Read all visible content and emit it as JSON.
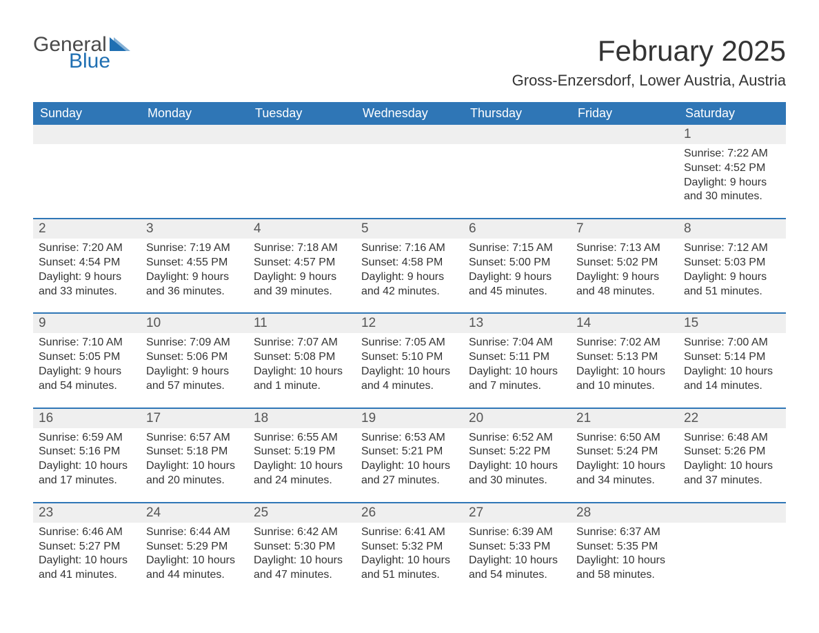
{
  "logo": {
    "part1": "General",
    "part2": "Blue",
    "accent_color": "#1f6fb2"
  },
  "title": "February 2025",
  "location": "Gross-Enzersdorf, Lower Austria, Austria",
  "colors": {
    "header_bg": "#2f76b6",
    "daynum_bg": "#efefef",
    "rule": "#2f76b6",
    "text": "#333333",
    "page_bg": "#ffffff"
  },
  "day_headers": [
    "Sunday",
    "Monday",
    "Tuesday",
    "Wednesday",
    "Thursday",
    "Friday",
    "Saturday"
  ],
  "weeks": [
    {
      "nums": [
        "",
        "",
        "",
        "",
        "",
        "",
        "1"
      ],
      "cells": [
        null,
        null,
        null,
        null,
        null,
        null,
        {
          "sunrise": "Sunrise: 7:22 AM",
          "sunset": "Sunset: 4:52 PM",
          "d1": "Daylight: 9 hours",
          "d2": "and 30 minutes."
        }
      ]
    },
    {
      "nums": [
        "2",
        "3",
        "4",
        "5",
        "6",
        "7",
        "8"
      ],
      "cells": [
        {
          "sunrise": "Sunrise: 7:20 AM",
          "sunset": "Sunset: 4:54 PM",
          "d1": "Daylight: 9 hours",
          "d2": "and 33 minutes."
        },
        {
          "sunrise": "Sunrise: 7:19 AM",
          "sunset": "Sunset: 4:55 PM",
          "d1": "Daylight: 9 hours",
          "d2": "and 36 minutes."
        },
        {
          "sunrise": "Sunrise: 7:18 AM",
          "sunset": "Sunset: 4:57 PM",
          "d1": "Daylight: 9 hours",
          "d2": "and 39 minutes."
        },
        {
          "sunrise": "Sunrise: 7:16 AM",
          "sunset": "Sunset: 4:58 PM",
          "d1": "Daylight: 9 hours",
          "d2": "and 42 minutes."
        },
        {
          "sunrise": "Sunrise: 7:15 AM",
          "sunset": "Sunset: 5:00 PM",
          "d1": "Daylight: 9 hours",
          "d2": "and 45 minutes."
        },
        {
          "sunrise": "Sunrise: 7:13 AM",
          "sunset": "Sunset: 5:02 PM",
          "d1": "Daylight: 9 hours",
          "d2": "and 48 minutes."
        },
        {
          "sunrise": "Sunrise: 7:12 AM",
          "sunset": "Sunset: 5:03 PM",
          "d1": "Daylight: 9 hours",
          "d2": "and 51 minutes."
        }
      ]
    },
    {
      "nums": [
        "9",
        "10",
        "11",
        "12",
        "13",
        "14",
        "15"
      ],
      "cells": [
        {
          "sunrise": "Sunrise: 7:10 AM",
          "sunset": "Sunset: 5:05 PM",
          "d1": "Daylight: 9 hours",
          "d2": "and 54 minutes."
        },
        {
          "sunrise": "Sunrise: 7:09 AM",
          "sunset": "Sunset: 5:06 PM",
          "d1": "Daylight: 9 hours",
          "d2": "and 57 minutes."
        },
        {
          "sunrise": "Sunrise: 7:07 AM",
          "sunset": "Sunset: 5:08 PM",
          "d1": "Daylight: 10 hours",
          "d2": "and 1 minute."
        },
        {
          "sunrise": "Sunrise: 7:05 AM",
          "sunset": "Sunset: 5:10 PM",
          "d1": "Daylight: 10 hours",
          "d2": "and 4 minutes."
        },
        {
          "sunrise": "Sunrise: 7:04 AM",
          "sunset": "Sunset: 5:11 PM",
          "d1": "Daylight: 10 hours",
          "d2": "and 7 minutes."
        },
        {
          "sunrise": "Sunrise: 7:02 AM",
          "sunset": "Sunset: 5:13 PM",
          "d1": "Daylight: 10 hours",
          "d2": "and 10 minutes."
        },
        {
          "sunrise": "Sunrise: 7:00 AM",
          "sunset": "Sunset: 5:14 PM",
          "d1": "Daylight: 10 hours",
          "d2": "and 14 minutes."
        }
      ]
    },
    {
      "nums": [
        "16",
        "17",
        "18",
        "19",
        "20",
        "21",
        "22"
      ],
      "cells": [
        {
          "sunrise": "Sunrise: 6:59 AM",
          "sunset": "Sunset: 5:16 PM",
          "d1": "Daylight: 10 hours",
          "d2": "and 17 minutes."
        },
        {
          "sunrise": "Sunrise: 6:57 AM",
          "sunset": "Sunset: 5:18 PM",
          "d1": "Daylight: 10 hours",
          "d2": "and 20 minutes."
        },
        {
          "sunrise": "Sunrise: 6:55 AM",
          "sunset": "Sunset: 5:19 PM",
          "d1": "Daylight: 10 hours",
          "d2": "and 24 minutes."
        },
        {
          "sunrise": "Sunrise: 6:53 AM",
          "sunset": "Sunset: 5:21 PM",
          "d1": "Daylight: 10 hours",
          "d2": "and 27 minutes."
        },
        {
          "sunrise": "Sunrise: 6:52 AM",
          "sunset": "Sunset: 5:22 PM",
          "d1": "Daylight: 10 hours",
          "d2": "and 30 minutes."
        },
        {
          "sunrise": "Sunrise: 6:50 AM",
          "sunset": "Sunset: 5:24 PM",
          "d1": "Daylight: 10 hours",
          "d2": "and 34 minutes."
        },
        {
          "sunrise": "Sunrise: 6:48 AM",
          "sunset": "Sunset: 5:26 PM",
          "d1": "Daylight: 10 hours",
          "d2": "and 37 minutes."
        }
      ]
    },
    {
      "nums": [
        "23",
        "24",
        "25",
        "26",
        "27",
        "28",
        ""
      ],
      "cells": [
        {
          "sunrise": "Sunrise: 6:46 AM",
          "sunset": "Sunset: 5:27 PM",
          "d1": "Daylight: 10 hours",
          "d2": "and 41 minutes."
        },
        {
          "sunrise": "Sunrise: 6:44 AM",
          "sunset": "Sunset: 5:29 PM",
          "d1": "Daylight: 10 hours",
          "d2": "and 44 minutes."
        },
        {
          "sunrise": "Sunrise: 6:42 AM",
          "sunset": "Sunset: 5:30 PM",
          "d1": "Daylight: 10 hours",
          "d2": "and 47 minutes."
        },
        {
          "sunrise": "Sunrise: 6:41 AM",
          "sunset": "Sunset: 5:32 PM",
          "d1": "Daylight: 10 hours",
          "d2": "and 51 minutes."
        },
        {
          "sunrise": "Sunrise: 6:39 AM",
          "sunset": "Sunset: 5:33 PM",
          "d1": "Daylight: 10 hours",
          "d2": "and 54 minutes."
        },
        {
          "sunrise": "Sunrise: 6:37 AM",
          "sunset": "Sunset: 5:35 PM",
          "d1": "Daylight: 10 hours",
          "d2": "and 58 minutes."
        },
        null
      ]
    }
  ]
}
